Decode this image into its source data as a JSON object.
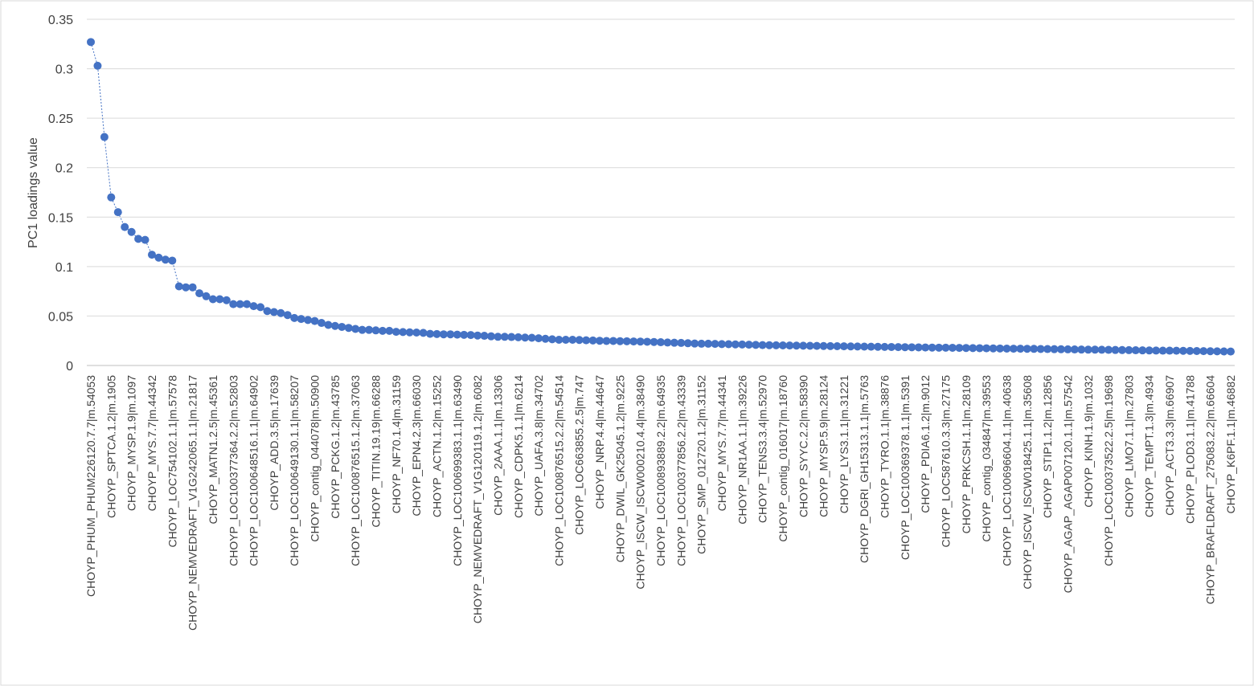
{
  "chart_data": {
    "type": "line",
    "title": "",
    "xlabel": "",
    "ylabel": "PC1 loadings value",
    "ylim": [
      0,
      0.35
    ],
    "yticks": [
      "0",
      "0.05",
      "0.1",
      "0.15",
      "0.2",
      "0.25",
      "0.3",
      "0.35"
    ],
    "grid": "horizontal",
    "legend": "none",
    "marker": "circle",
    "line_style": "dotted",
    "colors": {
      "series": "#4472C4",
      "grid": "#D9D9D9",
      "axis_text": "#404040"
    },
    "x_tick_labels": [
      "CHOYP_PHUM_PHUM226120.7.7|m.54053",
      "CHOYP_SPTCA.1.2|m.1905",
      "CHOYP_MYSP.1.9|m.1097",
      "CHOYP_MYS.7.7|m.44342",
      "CHOYP_LOC754102.1.1|m.57578",
      "CHOYP_NEMVEDRAFT_V1G242065.1.1|m.21817",
      "CHOYP_MATN1.2.5|m.45361",
      "CHOYP_LOC100377364.2.2|m.52803",
      "CHOYP_LOC100648516.1.1|m.64902",
      "CHOYP_ADD.3.5|m.17639",
      "CHOYP_LOC100649130.1.1|m.58207",
      "CHOYP_contig_044078|m.50900",
      "CHOYP_PCKG.1.2|m.43785",
      "CHOYP_LOC100876515.1.2|m.37063",
      "CHOYP_TITIN.19.19|m.66288",
      "CHOYP_NF70.1.4|m.31159",
      "CHOYP_EPN4.2.3|m.66030",
      "CHOYP_ACTN.1.2|m.15252",
      "CHOYP_LOC100699383.1.1|m.63490",
      "CHOYP_NEMVEDRAFT_V1G120119.1.2|m.6082",
      "CHOYP_2AAA.1.1|m.13306",
      "CHOYP_CDPK5.1.1|m.6214",
      "CHOYP_UAFA.3.8|m.34702",
      "CHOYP_LOC100876515.2.2|m.54514",
      "CHOYP_LOC663855.2.5|m.747",
      "CHOYP_NRP.4.4|m.44647",
      "CHOYP_DWIL_GK25045.1.2|m.9225",
      "CHOYP_ISCW_ISCW000210.4.4|m.38490",
      "CHOYP_LOC100893889.2.2|m.64935",
      "CHOYP_LOC100377856.2.2|m.43339",
      "CHOYP_SMP_012720.1.2|m.31152",
      "CHOYP_MYS.7.7|m.44341",
      "CHOYP_NR1AA.1.1|m.39226",
      "CHOYP_TENS3.3.4|m.52970",
      "CHOYP_contig_016017|m.18760",
      "CHOYP_SYYC.2.2|m.58390",
      "CHOYP_MYSP.5.9|m.28124",
      "CHOYP_LYS3.1.1|m.31221",
      "CHOYP_DGRI_GH15313.1.1|m.5763",
      "CHOYP_TYRO.1.1|m.38876",
      "CHOYP_LOC100369378.1.1|m.5391",
      "CHOYP_PDIA6.1.2|m.9012",
      "CHOYP_LOC587610.3.3|m.27175",
      "CHOYP_PRKCSH.1.1|m.28109",
      "CHOYP_contig_034847|m.39553",
      "CHOYP_LOC100696604.1.1|m.40638",
      "CHOYP_ISCW_ISCW018425.1.1|m.35608",
      "CHOYP_STIP1.1.2|m.12856",
      "CHOYP_AGAP_AGAP007120.1.1|m.57542",
      "CHOYP_KINH.1.9|m.1032",
      "CHOYP_LOC100373522.2.5|m.19698",
      "CHOYP_LMO7.1.1|m.27803",
      "CHOYP_TEMPT.1.3|m.4934",
      "CHOYP_ACT3.3.3|m.66907",
      "CHOYP_PLOD3.1.1|m.41788",
      "CHOYP_BRAFLDRAFT_275083.2.2|m.66604",
      "CHOYP_K6PF.1.1|m.46882"
    ],
    "series": [
      {
        "values": [
          0.327,
          0.303,
          0.231,
          0.17,
          0.155,
          0.14,
          0.135,
          0.128,
          0.127,
          0.112,
          0.109,
          0.107,
          0.106,
          0.08,
          0.079,
          0.079,
          0.073,
          0.07,
          0.067,
          0.067,
          0.066,
          0.062,
          0.062,
          0.062,
          0.06,
          0.059,
          0.055,
          0.054,
          0.053,
          0.051,
          0.048,
          0.047,
          0.046,
          0.045,
          0.043,
          0.041,
          0.04,
          0.039,
          0.038,
          0.037,
          0.036,
          0.036,
          0.0355,
          0.035,
          0.035,
          0.034,
          0.0338,
          0.0335,
          0.0333,
          0.033,
          0.032,
          0.0318,
          0.0315,
          0.0315,
          0.0312,
          0.031,
          0.0308,
          0.0303,
          0.03,
          0.0295,
          0.029,
          0.029,
          0.0288,
          0.0285,
          0.0282,
          0.028,
          0.0275,
          0.027,
          0.0265,
          0.026,
          0.026,
          0.026,
          0.0258,
          0.0255,
          0.0253,
          0.025,
          0.0248,
          0.0248,
          0.0246,
          0.0245,
          0.0243,
          0.0242,
          0.024,
          0.0238,
          0.0235,
          0.0232,
          0.023,
          0.0228,
          0.0225,
          0.0222,
          0.022,
          0.022,
          0.0218,
          0.0216,
          0.0215,
          0.0213,
          0.0212,
          0.021,
          0.0208,
          0.0206,
          0.0205,
          0.0204,
          0.0203,
          0.0202,
          0.0201,
          0.02,
          0.0199,
          0.0198,
          0.0197,
          0.0196,
          0.0195,
          0.0194,
          0.0193,
          0.0192,
          0.0191,
          0.019,
          0.0189,
          0.0188,
          0.0187,
          0.0186,
          0.0185,
          0.0184,
          0.0183,
          0.0182,
          0.0181,
          0.018,
          0.018,
          0.0179,
          0.0178,
          0.0177,
          0.0176,
          0.0175,
          0.0174,
          0.0173,
          0.0172,
          0.0171,
          0.017,
          0.017,
          0.0169,
          0.0168,
          0.0167,
          0.0166,
          0.0165,
          0.0164,
          0.0163,
          0.0162,
          0.0161,
          0.016,
          0.016,
          0.0159,
          0.0158,
          0.0157,
          0.0156,
          0.0155,
          0.0154,
          0.0153,
          0.0152,
          0.0151,
          0.015,
          0.015,
          0.0149,
          0.0148,
          0.0147,
          0.0146,
          0.0145,
          0.0144,
          0.0143,
          0.0142,
          0.0141
        ]
      }
    ]
  }
}
